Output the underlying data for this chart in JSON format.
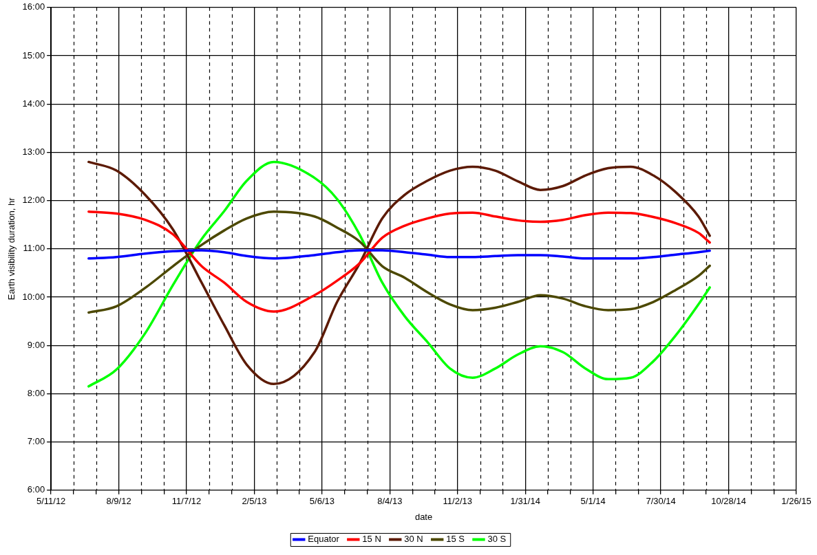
{
  "chart_data": {
    "type": "line",
    "xlabel": "date",
    "ylabel": "Earth visibility duration, hr",
    "x": [
      "2012-06-30",
      "2012-08-06",
      "2012-09-13",
      "2012-10-20",
      "2012-11-27",
      "2012-12-27",
      "2013-01-26",
      "2013-03-03",
      "2013-04-26",
      "2013-05-26",
      "2013-06-25",
      "2013-07-25",
      "2013-08-24",
      "2013-09-23",
      "2013-10-23",
      "2013-11-22",
      "2013-12-22",
      "2014-01-21",
      "2014-02-20",
      "2014-03-22",
      "2014-04-21",
      "2014-05-21",
      "2014-06-20",
      "2014-07-20",
      "2014-08-19",
      "2014-09-18",
      "2014-10-03"
    ],
    "series": [
      {
        "name": "Equator",
        "color": "#0000ff",
        "values": [
          10.8,
          10.83,
          10.9,
          10.95,
          10.97,
          10.93,
          10.85,
          10.8,
          10.87,
          10.93,
          10.97,
          10.97,
          10.93,
          10.88,
          10.83,
          10.83,
          10.85,
          10.87,
          10.87,
          10.84,
          10.8,
          10.8,
          10.8,
          10.83,
          10.88,
          10.93,
          10.96
        ]
      },
      {
        "name": "15 N",
        "color": "#ff0000",
        "values": [
          11.77,
          11.73,
          11.6,
          11.3,
          10.64,
          10.3,
          9.9,
          9.7,
          10.04,
          10.34,
          10.7,
          11.23,
          11.48,
          11.63,
          11.73,
          11.75,
          11.67,
          11.59,
          11.56,
          11.6,
          11.7,
          11.75,
          11.74,
          11.66,
          11.53,
          11.33,
          11.13
        ]
      },
      {
        "name": "30 N",
        "color": "#5c1a04",
        "values": [
          12.8,
          12.62,
          12.12,
          11.4,
          10.3,
          9.42,
          8.6,
          8.2,
          8.86,
          9.9,
          10.7,
          11.63,
          12.12,
          12.41,
          12.62,
          12.7,
          12.62,
          12.4,
          12.22,
          12.3,
          12.52,
          12.67,
          12.7,
          12.52,
          12.17,
          11.67,
          11.27
        ]
      },
      {
        "name": "15 S",
        "color": "#4c4800",
        "values": [
          9.68,
          9.81,
          10.19,
          10.64,
          11.08,
          11.38,
          11.63,
          11.77,
          11.67,
          11.44,
          11.15,
          10.64,
          10.4,
          10.1,
          9.85,
          9.73,
          9.78,
          9.9,
          10.04,
          9.97,
          9.81,
          9.73,
          9.75,
          9.9,
          10.15,
          10.44,
          10.65
        ]
      },
      {
        "name": "30 S",
        "color": "#00ff00",
        "values": [
          8.15,
          8.5,
          9.25,
          10.25,
          11.2,
          11.78,
          12.41,
          12.8,
          12.47,
          12.03,
          11.29,
          10.3,
          9.6,
          9.07,
          8.52,
          8.33,
          8.52,
          8.81,
          8.98,
          8.86,
          8.52,
          8.3,
          8.33,
          8.67,
          9.21,
          9.85,
          10.2
        ]
      }
    ],
    "xlim": [
      "2012-05-11",
      "2015-01-26"
    ],
    "xticks": [
      {
        "value": "2012-05-11",
        "label": "5/11/12"
      },
      {
        "value": "2012-06-10",
        "label": null
      },
      {
        "value": "2012-07-10",
        "label": null
      },
      {
        "value": "2012-08-09",
        "label": "8/9/12"
      },
      {
        "value": "2012-09-08",
        "label": null
      },
      {
        "value": "2012-10-08",
        "label": null
      },
      {
        "value": "2012-11-07",
        "label": "11/7/12"
      },
      {
        "value": "2012-12-07",
        "label": null
      },
      {
        "value": "2013-01-06",
        "label": null
      },
      {
        "value": "2013-02-05",
        "label": "2/5/13"
      },
      {
        "value": "2013-03-07",
        "label": null
      },
      {
        "value": "2013-04-06",
        "label": null
      },
      {
        "value": "2013-05-06",
        "label": "5/6/13"
      },
      {
        "value": "2013-06-05",
        "label": null
      },
      {
        "value": "2013-07-05",
        "label": null
      },
      {
        "value": "2013-08-04",
        "label": "8/4/13"
      },
      {
        "value": "2013-09-03",
        "label": null
      },
      {
        "value": "2013-10-03",
        "label": null
      },
      {
        "value": "2013-11-02",
        "label": "11/2/13"
      },
      {
        "value": "2013-12-02",
        "label": null
      },
      {
        "value": "2014-01-01",
        "label": null
      },
      {
        "value": "2014-01-31",
        "label": "1/31/14"
      },
      {
        "value": "2014-03-02",
        "label": null
      },
      {
        "value": "2014-04-01",
        "label": null
      },
      {
        "value": "2014-05-01",
        "label": "5/1/14"
      },
      {
        "value": "2014-05-31",
        "label": null
      },
      {
        "value": "2014-06-30",
        "label": null
      },
      {
        "value": "2014-07-30",
        "label": "7/30/14"
      },
      {
        "value": "2014-08-29",
        "label": null
      },
      {
        "value": "2014-09-28",
        "label": null
      },
      {
        "value": "2014-10-28",
        "label": "10/28/14"
      },
      {
        "value": "2014-11-27",
        "label": null
      },
      {
        "value": "2014-12-27",
        "label": null
      },
      {
        "value": "2015-01-26",
        "label": "1/26/15"
      }
    ],
    "ylim": [
      6,
      16
    ],
    "yticks": [
      {
        "value": 6,
        "label": "6:00"
      },
      {
        "value": 7,
        "label": "7:00"
      },
      {
        "value": 8,
        "label": "8:00"
      },
      {
        "value": 9,
        "label": "9:00"
      },
      {
        "value": 10,
        "label": "10:00"
      },
      {
        "value": 11,
        "label": "11:00"
      },
      {
        "value": 12,
        "label": "12:00"
      },
      {
        "value": 13,
        "label": "13:00"
      },
      {
        "value": 14,
        "label": "14:00"
      },
      {
        "value": 15,
        "label": "15:00"
      },
      {
        "value": 16,
        "label": "16:00"
      }
    ],
    "grid": true,
    "legend": "bottom",
    "marker": "none",
    "line_style": "solid"
  }
}
